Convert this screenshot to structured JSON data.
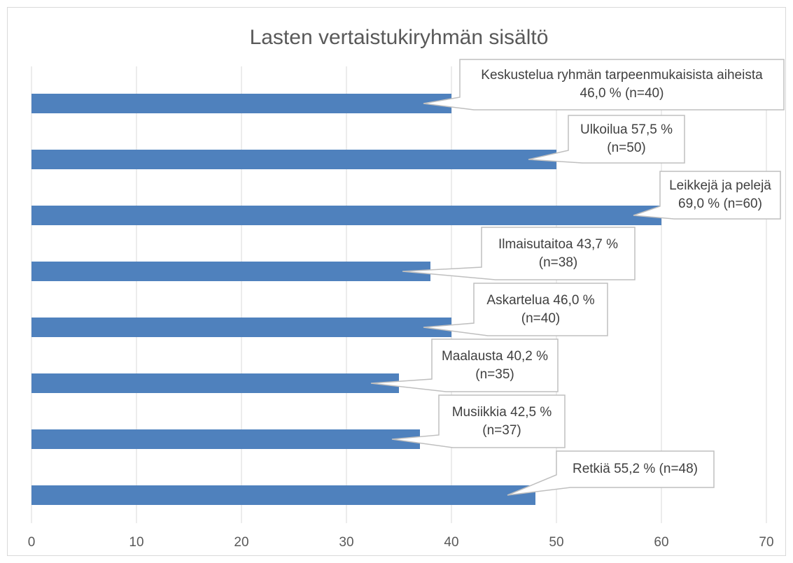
{
  "chart_data": {
    "type": "bar",
    "orientation": "horizontal",
    "title": "Lasten vertaistukiryhmän sisältö",
    "values": [
      40,
      50,
      60,
      38,
      40,
      35,
      37,
      48
    ],
    "value_labels": [
      "Keskustelua ryhmän tarpeenmukaisista aiheista 46,0 % (n=40)",
      "Ulkoilua 57,5 % (n=50)",
      "Leikkejä ja pelejä 69,0 % (n=60)",
      "Ilmaisutaitoa 43,7 % (n=38)",
      "Askartelua 46,0 % (n=40)",
      "Maalausta 40,2 % (n=35)",
      "Musiikkia 42,5 % (n=37)",
      "Retkiä 55,2 % (n=48)"
    ],
    "color": "#4f81bd",
    "xlim": [
      0,
      70
    ],
    "xticks": [
      0,
      10,
      20,
      30,
      40,
      50,
      60,
      70
    ],
    "grid": true
  }
}
